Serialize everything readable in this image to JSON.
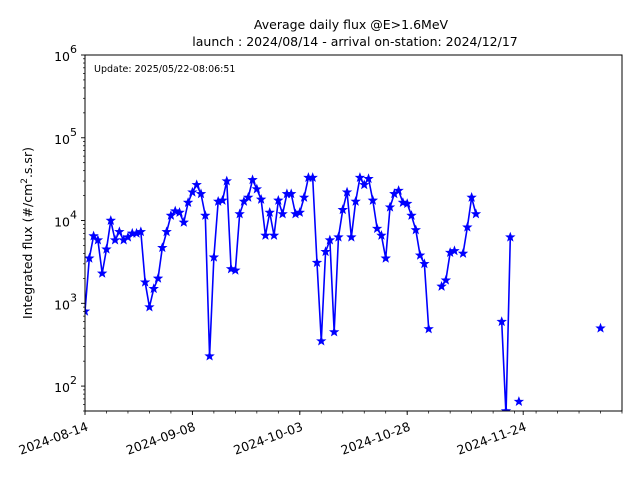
{
  "chart_data": {
    "type": "line",
    "title": "Average daily flux @E>1.6MeV",
    "subtitle": "launch : 2024/08/14 - arrival on-station: 2024/12/17",
    "annotation": "Update: 2025/05/22-08:06:51",
    "xlabel": "",
    "ylabel_prefix": "Integrated flux (#/cm",
    "ylabel_exp": "2",
    "ylabel_suffix": ".s.sr)",
    "xlim": [
      "2024-08-14",
      "2024-12-17"
    ],
    "ylim": [
      50,
      1000000
    ],
    "yscale": "log",
    "grid": false,
    "color": "#0000ff",
    "marker": "star",
    "x_ticks": [
      "2024-08-14",
      "2024-09-08",
      "2024-10-03",
      "2024-10-28",
      "2024-11-24"
    ],
    "y_ticks": [
      {
        "value": 100,
        "base": "10",
        "exp": "2"
      },
      {
        "value": 1000,
        "base": "10",
        "exp": "3"
      },
      {
        "value": 10000,
        "base": "10",
        "exp": "4"
      },
      {
        "value": 100000,
        "base": "10",
        "exp": "5"
      },
      {
        "value": 1000000,
        "base": "10",
        "exp": "6"
      }
    ],
    "series": [
      {
        "points": [
          [
            "2024-08-14",
            800
          ],
          [
            "2024-08-15",
            3500
          ],
          [
            "2024-08-16",
            6500
          ],
          [
            "2024-08-17",
            5800
          ],
          [
            "2024-08-18",
            2300
          ],
          [
            "2024-08-19",
            4500
          ],
          [
            "2024-08-20",
            10000
          ],
          [
            "2024-08-21",
            5800
          ],
          [
            "2024-08-22",
            7300
          ],
          [
            "2024-08-23",
            5800
          ],
          [
            "2024-08-24",
            6300
          ],
          [
            "2024-08-25",
            7000
          ],
          [
            "2024-08-26",
            7000
          ],
          [
            "2024-08-27",
            7300
          ],
          [
            "2024-08-28",
            1800
          ],
          [
            "2024-08-29",
            900
          ],
          [
            "2024-08-30",
            1500
          ],
          [
            "2024-08-31",
            2000
          ],
          [
            "2024-09-01",
            4700
          ],
          [
            "2024-09-02",
            7300
          ],
          [
            "2024-09-03",
            11500
          ],
          [
            "2024-09-04",
            13000
          ],
          [
            "2024-09-05",
            12500
          ],
          [
            "2024-09-06",
            9500
          ],
          [
            "2024-09-07",
            16500
          ],
          [
            "2024-09-08",
            22000
          ],
          [
            "2024-09-09",
            27000
          ],
          [
            "2024-09-10",
            21000
          ],
          [
            "2024-09-11",
            11500
          ],
          [
            "2024-09-12",
            230
          ],
          [
            "2024-09-13",
            3600
          ],
          [
            "2024-09-14",
            17000
          ],
          [
            "2024-09-15",
            17500
          ],
          [
            "2024-09-16",
            30000
          ],
          [
            "2024-09-17",
            2600
          ],
          [
            "2024-09-18",
            2500
          ],
          [
            "2024-09-19",
            12000
          ],
          [
            "2024-09-20",
            17000
          ],
          [
            "2024-09-21",
            19000
          ],
          [
            "2024-09-22",
            31000
          ],
          [
            "2024-09-23",
            24000
          ],
          [
            "2024-09-24",
            18000
          ],
          [
            "2024-09-25",
            6600
          ],
          [
            "2024-09-26",
            12500
          ],
          [
            "2024-09-27",
            6600
          ],
          [
            "2024-09-28",
            17500
          ],
          [
            "2024-09-29",
            12000
          ],
          [
            "2024-09-30",
            21000
          ],
          [
            "2024-10-01",
            21000
          ],
          [
            "2024-10-02",
            12000
          ],
          [
            "2024-10-03",
            12500
          ],
          [
            "2024-10-04",
            19000
          ],
          [
            "2024-10-05",
            33000
          ],
          [
            "2024-10-06",
            33000
          ],
          [
            "2024-10-07",
            3100
          ],
          [
            "2024-10-08",
            350
          ],
          [
            "2024-10-09",
            4200
          ],
          [
            "2024-10-10",
            5800
          ],
          [
            "2024-10-11",
            450
          ],
          [
            "2024-10-12",
            6300
          ],
          [
            "2024-10-13",
            13500
          ],
          [
            "2024-10-14",
            22000
          ],
          [
            "2024-10-15",
            6300
          ],
          [
            "2024-10-16",
            17000
          ],
          [
            "2024-10-17",
            33000
          ],
          [
            "2024-10-18",
            27000
          ],
          [
            "2024-10-19",
            32000
          ],
          [
            "2024-10-20",
            17500
          ],
          [
            "2024-10-21",
            8000
          ],
          [
            "2024-10-22",
            6600
          ],
          [
            "2024-10-23",
            3500
          ],
          [
            "2024-10-24",
            14500
          ],
          [
            "2024-10-25",
            21000
          ],
          [
            "2024-10-26",
            23000
          ],
          [
            "2024-10-27",
            16500
          ],
          [
            "2024-10-28",
            16000
          ],
          [
            "2024-10-29",
            11500
          ],
          [
            "2024-10-30",
            7700
          ],
          [
            "2024-10-31",
            3800
          ],
          [
            "2024-11-01",
            3000
          ],
          [
            "2024-11-02",
            490
          ],
          [
            "2024-11-03",
            null
          ],
          [
            "2024-11-04",
            null
          ],
          [
            "2024-11-05",
            1600
          ],
          [
            "2024-11-06",
            1900
          ],
          [
            "2024-11-07",
            4100
          ],
          [
            "2024-11-08",
            4300
          ],
          [
            "2024-11-09",
            null
          ],
          [
            "2024-11-10",
            4000
          ],
          [
            "2024-11-11",
            8300
          ],
          [
            "2024-11-12",
            19000
          ],
          [
            "2024-11-13",
            12000
          ],
          [
            "2024-11-14",
            null
          ],
          [
            "2024-11-15",
            null
          ],
          [
            "2024-11-16",
            null
          ],
          [
            "2024-11-17",
            null
          ],
          [
            "2024-11-18",
            null
          ],
          [
            "2024-11-19",
            600
          ],
          [
            "2024-11-20",
            50
          ],
          [
            "2024-11-21",
            6300
          ],
          [
            "2024-11-22",
            null
          ],
          [
            "2024-11-23",
            65
          ],
          [
            "2024-11-24",
            null
          ],
          [
            "2024-11-25",
            null
          ],
          [
            "2024-11-26",
            null
          ],
          [
            "2024-11-27",
            null
          ],
          [
            "2024-11-28",
            null
          ],
          [
            "2024-11-29",
            null
          ],
          [
            "2024-11-30",
            null
          ],
          [
            "2024-12-01",
            null
          ],
          [
            "2024-12-02",
            null
          ],
          [
            "2024-12-03",
            null
          ],
          [
            "2024-12-04",
            null
          ],
          [
            "2024-12-05",
            null
          ],
          [
            "2024-12-06",
            null
          ],
          [
            "2024-12-07",
            null
          ],
          [
            "2024-12-08",
            null
          ],
          [
            "2024-12-09",
            null
          ],
          [
            "2024-12-10",
            null
          ],
          [
            "2024-12-11",
            null
          ],
          [
            "2024-12-12",
            500
          ]
        ]
      }
    ]
  }
}
